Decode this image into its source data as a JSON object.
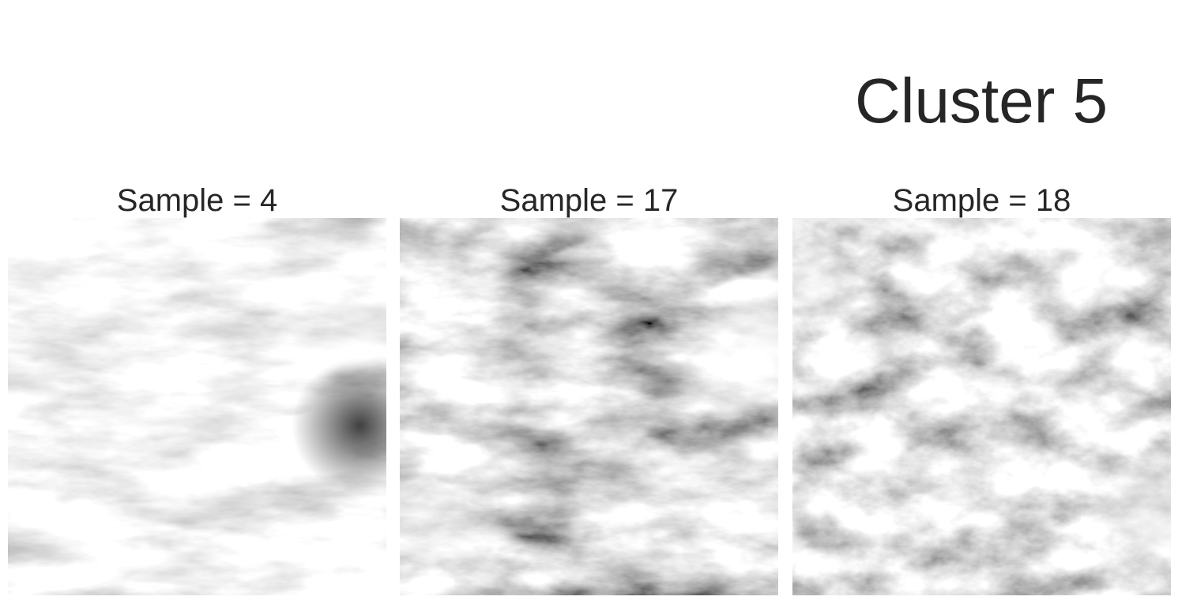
{
  "figure": {
    "title": "Cluster 5"
  },
  "panels": [
    {
      "title": "Sample = 4",
      "tone": "bright"
    },
    {
      "title": "Sample = 17",
      "tone": "dark"
    },
    {
      "title": "Sample = 18",
      "tone": "mid"
    }
  ]
}
